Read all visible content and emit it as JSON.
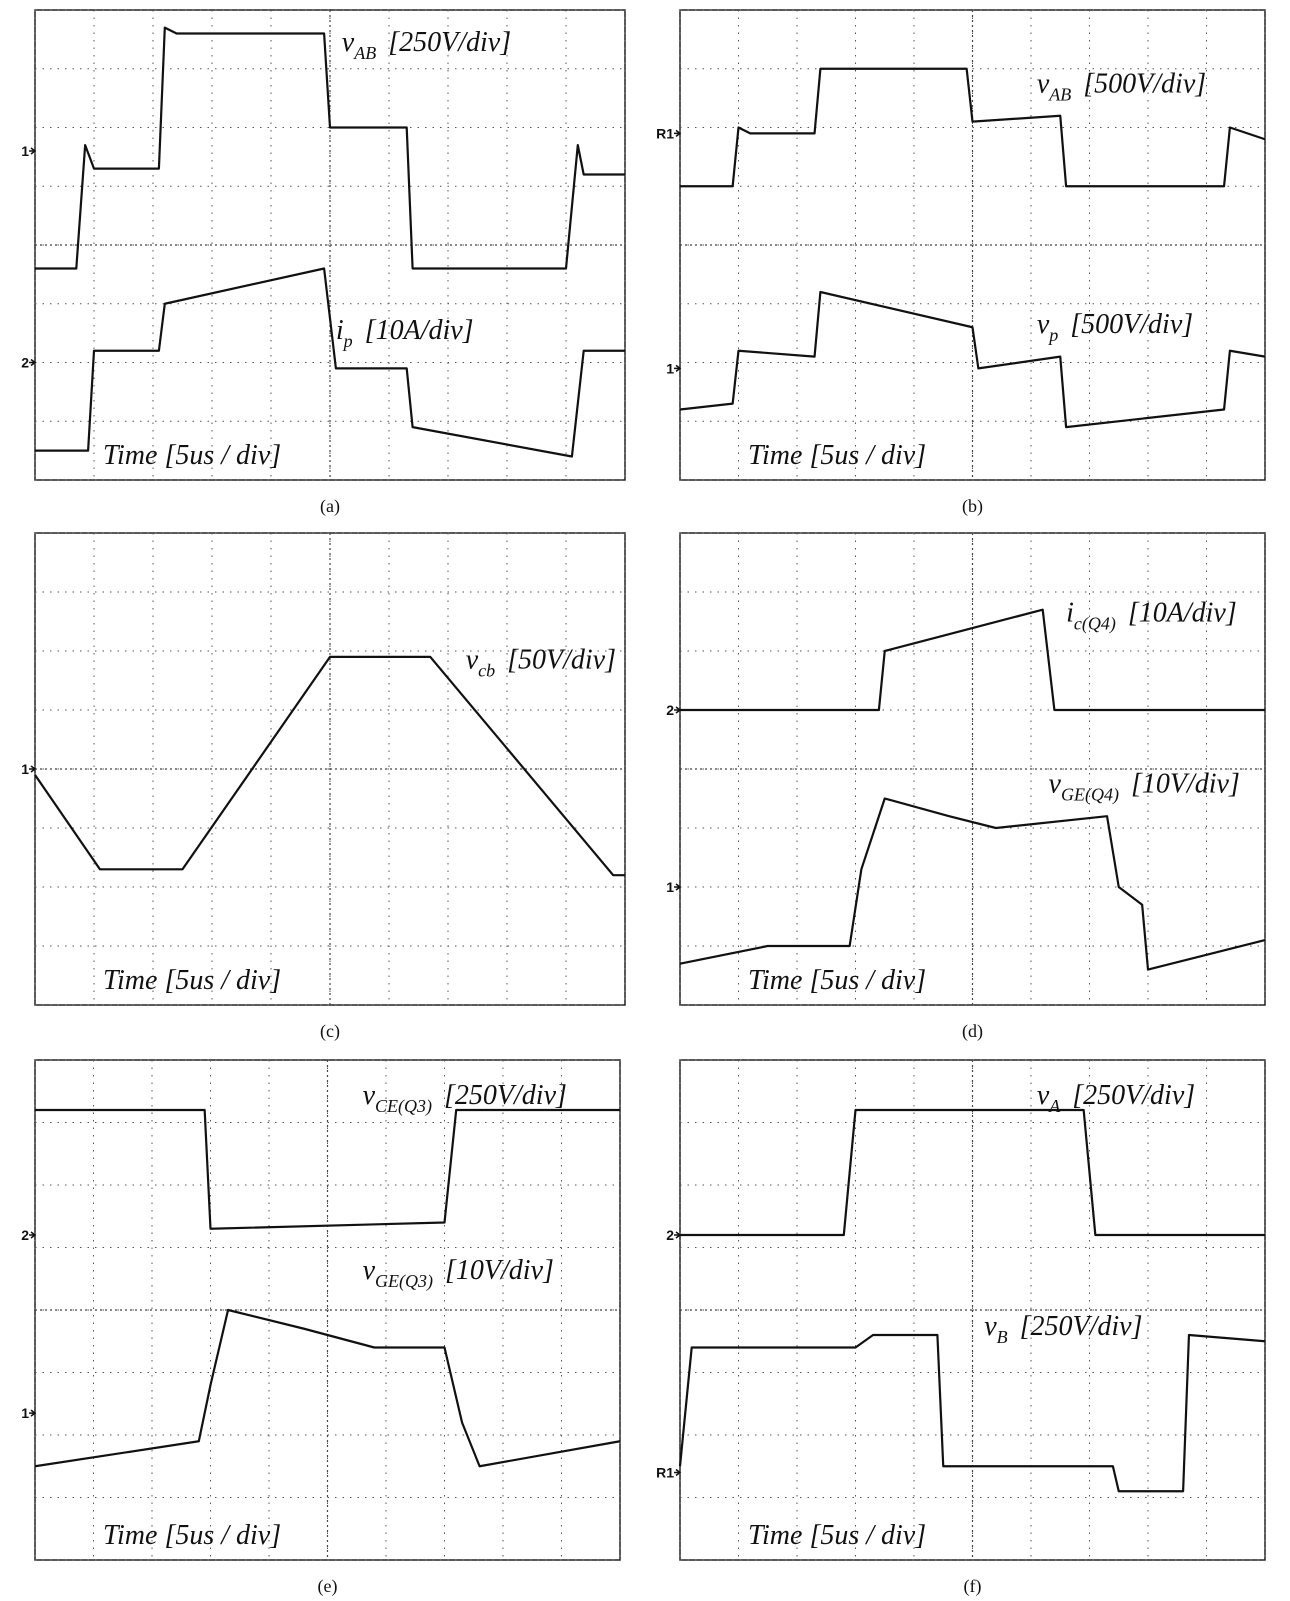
{
  "chart_data": [
    {
      "type": "line",
      "caption": "(a)",
      "xlabel": "Time [5us / div]",
      "xlim": [
        0,
        10
      ],
      "ylim": [
        0,
        8
      ],
      "xticks": [
        0,
        1,
        2,
        3,
        4,
        5,
        6,
        7,
        8,
        9,
        10
      ],
      "yticks": [
        0,
        1,
        2,
        3,
        4,
        5,
        6,
        7,
        8
      ],
      "grid": true,
      "markers": [
        {
          "label": "1",
          "level": 5.6
        },
        {
          "label": "2",
          "level": 2.0
        }
      ],
      "series": [
        {
          "name": "v",
          "subscript": "AB",
          "scale": "[250V/div]",
          "color": "#111111",
          "x": [
            0,
            0.7,
            0.85,
            1.0,
            2.1,
            2.2,
            2.4,
            4.9,
            5.0,
            5.1,
            6.3,
            6.4,
            9.0,
            9.2,
            9.3,
            10
          ],
          "values": [
            3.6,
            3.6,
            5.7,
            5.3,
            5.3,
            7.7,
            7.6,
            7.6,
            6.0,
            6.0,
            6.0,
            3.6,
            3.6,
            5.7,
            5.2,
            5.2
          ]
        },
        {
          "name": "i",
          "subscript": "p",
          "scale": "[10A/div]",
          "color": "#111111",
          "x": [
            0,
            0.9,
            1.0,
            2.1,
            2.2,
            4.9,
            5.1,
            6.3,
            6.4,
            9.1,
            9.3,
            10
          ],
          "values": [
            0.5,
            0.5,
            2.2,
            2.2,
            3.0,
            3.6,
            1.9,
            1.9,
            0.9,
            0.4,
            2.2,
            2.2
          ]
        }
      ]
    },
    {
      "type": "line",
      "caption": "(b)",
      "xlabel": "Time [5us / div]",
      "xlim": [
        0,
        10
      ],
      "ylim": [
        0,
        8
      ],
      "xticks": [
        0,
        1,
        2,
        3,
        4,
        5,
        6,
        7,
        8,
        9,
        10
      ],
      "yticks": [
        0,
        1,
        2,
        3,
        4,
        5,
        6,
        7,
        8
      ],
      "grid": true,
      "markers": [
        {
          "label": "R1",
          "level": 5.9
        },
        {
          "label": "1",
          "level": 1.9
        }
      ],
      "series": [
        {
          "name": "v",
          "subscript": "AB",
          "scale": "[500V/div]",
          "color": "#111111",
          "x": [
            0,
            0.9,
            1.0,
            1.2,
            2.3,
            2.4,
            4.9,
            5.0,
            6.5,
            6.6,
            9.3,
            9.4,
            10
          ],
          "values": [
            5.0,
            5.0,
            6.0,
            5.9,
            5.9,
            7.0,
            7.0,
            6.1,
            6.2,
            5.0,
            5.0,
            6.0,
            5.8
          ]
        },
        {
          "name": "v",
          "subscript": "p",
          "scale": "[500V/div]",
          "color": "#111111",
          "x": [
            0,
            0.9,
            1.0,
            2.3,
            2.4,
            5.0,
            5.1,
            6.5,
            6.6,
            9.3,
            9.4,
            10
          ],
          "values": [
            1.2,
            1.3,
            2.2,
            2.1,
            3.2,
            2.6,
            1.9,
            2.1,
            0.9,
            1.2,
            2.2,
            2.1
          ]
        }
      ]
    },
    {
      "type": "line",
      "caption": "(c)",
      "xlabel": "Time [5us / div]",
      "xlim": [
        0,
        10
      ],
      "ylim": [
        0,
        8
      ],
      "xticks": [
        0,
        1,
        2,
        3,
        4,
        5,
        6,
        7,
        8,
        9,
        10
      ],
      "yticks": [
        0,
        1,
        2,
        3,
        4,
        5,
        6,
        7,
        8
      ],
      "grid": true,
      "markers": [
        {
          "label": "1",
          "level": 4.0
        }
      ],
      "series": [
        {
          "name": "v",
          "subscript": "cb",
          "scale": "[50V/div]",
          "color": "#111111",
          "x": [
            0,
            1.1,
            2.5,
            5.0,
            6.7,
            9.8,
            10
          ],
          "values": [
            3.9,
            2.3,
            2.3,
            5.9,
            5.9,
            2.2,
            2.2
          ]
        }
      ]
    },
    {
      "type": "line",
      "caption": "(d)",
      "xlabel": "Time [5us / div]",
      "xlim": [
        0,
        10
      ],
      "ylim": [
        0,
        8
      ],
      "xticks": [
        0,
        1,
        2,
        3,
        4,
        5,
        6,
        7,
        8,
        9,
        10
      ],
      "yticks": [
        0,
        1,
        2,
        3,
        4,
        5,
        6,
        7,
        8
      ],
      "grid": true,
      "markers": [
        {
          "label": "2",
          "level": 5.0
        },
        {
          "label": "1",
          "level": 2.0
        }
      ],
      "series": [
        {
          "name": "i",
          "subscript": "c(Q4)",
          "scale": "[10A/div]",
          "color": "#111111",
          "x": [
            0,
            3.4,
            3.5,
            6.2,
            6.4,
            10
          ],
          "values": [
            5.0,
            5.0,
            6.0,
            6.7,
            5.0,
            5.0
          ]
        },
        {
          "name": "v",
          "subscript": "GE(Q4)",
          "scale": "[10V/div]",
          "color": "#111111",
          "x": [
            0,
            1.5,
            2.9,
            3.1,
            3.5,
            4.6,
            5.4,
            7.3,
            7.5,
            7.9,
            8.0,
            10
          ],
          "values": [
            0.7,
            1.0,
            1.0,
            2.3,
            3.5,
            3.2,
            3.0,
            3.2,
            2.0,
            1.7,
            0.6,
            1.1
          ]
        }
      ]
    },
    {
      "type": "line",
      "caption": "(e)",
      "xlabel": "Time [5us / div]",
      "xlim": [
        0,
        10
      ],
      "ylim": [
        0,
        8
      ],
      "xticks": [
        0,
        1,
        2,
        3,
        4,
        5,
        6,
        7,
        8,
        9,
        10
      ],
      "yticks": [
        0,
        1,
        2,
        3,
        4,
        5,
        6,
        7,
        8
      ],
      "grid": true,
      "markers": [
        {
          "label": "2",
          "level": 5.2
        },
        {
          "label": "1",
          "level": 2.35
        }
      ],
      "series": [
        {
          "name": "v",
          "subscript": "CE(Q3)",
          "scale": "[250V/div]",
          "color": "#111111",
          "x": [
            0,
            2.9,
            3.0,
            7.0,
            7.2,
            10
          ],
          "values": [
            7.2,
            7.2,
            5.3,
            5.4,
            7.2,
            7.2
          ]
        },
        {
          "name": "v",
          "subscript": "GE(Q3)",
          "scale": "[10V/div]",
          "color": "#111111",
          "x": [
            0,
            2.8,
            3.0,
            3.3,
            4.6,
            5.8,
            7.0,
            7.3,
            7.6,
            10
          ],
          "values": [
            1.5,
            1.9,
            2.8,
            4.0,
            3.7,
            3.4,
            3.4,
            2.2,
            1.5,
            1.9
          ]
        }
      ]
    },
    {
      "type": "line",
      "caption": "(f)",
      "xlabel": "Time [5us / div]",
      "xlim": [
        0,
        10
      ],
      "ylim": [
        0,
        8
      ],
      "xticks": [
        0,
        1,
        2,
        3,
        4,
        5,
        6,
        7,
        8,
        9,
        10
      ],
      "yticks": [
        0,
        1,
        2,
        3,
        4,
        5,
        6,
        7,
        8
      ],
      "grid": true,
      "markers": [
        {
          "label": "2",
          "level": 5.2
        },
        {
          "label": "R1",
          "level": 1.4
        }
      ],
      "series": [
        {
          "name": "v",
          "subscript": "A",
          "scale": "[250V/div]",
          "color": "#111111",
          "x": [
            0,
            2.8,
            3.0,
            6.9,
            7.1,
            10
          ],
          "values": [
            5.2,
            5.2,
            7.2,
            7.2,
            5.2,
            5.2
          ]
        },
        {
          "name": "v",
          "subscript": "B",
          "scale": "[250V/div]",
          "color": "#111111",
          "x": [
            0,
            0.2,
            3.0,
            3.3,
            4.4,
            4.5,
            7.4,
            7.5,
            8.6,
            8.7,
            10
          ],
          "values": [
            1.5,
            3.4,
            3.4,
            3.6,
            3.6,
            1.5,
            1.5,
            1.1,
            1.1,
            3.6,
            3.5
          ]
        }
      ]
    }
  ]
}
